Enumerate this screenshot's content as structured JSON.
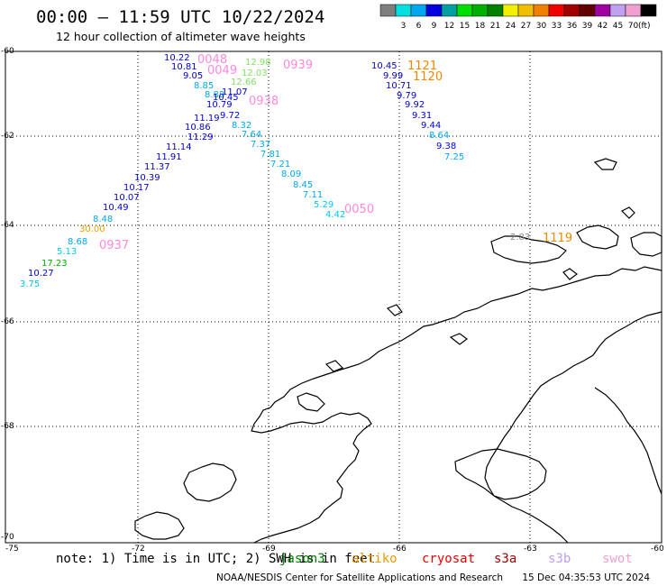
{
  "header": {
    "title": "00:00 – 11:59 UTC 10/22/2024",
    "subtitle": "12 hour collection of altimeter wave heights"
  },
  "legend": {
    "unit": "(ft)",
    "bins": [
      {
        "label": "",
        "color": "#7f7f7f"
      },
      {
        "label": "3",
        "color": "#00e0e0"
      },
      {
        "label": "6",
        "color": "#00a8f0"
      },
      {
        "label": "9",
        "color": "#0000e0"
      },
      {
        "label": "12",
        "color": "#00a0a0"
      },
      {
        "label": "15",
        "color": "#00e000"
      },
      {
        "label": "18",
        "color": "#00b000"
      },
      {
        "label": "21",
        "color": "#008000"
      },
      {
        "label": "24",
        "color": "#f0f000"
      },
      {
        "label": "27",
        "color": "#f0c000"
      },
      {
        "label": "30",
        "color": "#f08000"
      },
      {
        "label": "33",
        "color": "#f00000"
      },
      {
        "label": "36",
        "color": "#a00000"
      },
      {
        "label": "39",
        "color": "#600000"
      },
      {
        "label": "42",
        "color": "#a000a0"
      },
      {
        "label": "45",
        "color": "#c0a0f0"
      },
      {
        "label": "70",
        "color": "#f0a0d0"
      },
      {
        "label": "",
        "color": "#000000"
      }
    ]
  },
  "map": {
    "lat_labels": [
      "-60",
      "-62",
      "-64",
      "-66",
      "-68",
      "-70"
    ],
    "lon_labels": [
      "-75",
      "-72",
      "-69",
      "-66",
      "-63",
      "-60"
    ],
    "track_times": [
      {
        "text": "0048",
        "color": "#ff88dd"
      },
      {
        "text": "0049",
        "color": "#ff88dd"
      },
      {
        "text": "0939",
        "color": "#ff88dd"
      },
      {
        "text": "0938",
        "color": "#ff88dd"
      },
      {
        "text": "0050",
        "color": "#ff88dd"
      },
      {
        "text": "0937",
        "color": "#ff88dd"
      },
      {
        "text": "1121",
        "color": "#ee8800"
      },
      {
        "text": "1120",
        "color": "#ee8800"
      },
      {
        "text": "1119",
        "color": "#ee8800"
      }
    ],
    "wave_heights": [
      {
        "text": "10.22",
        "color": "#0000dd"
      },
      {
        "text": "10.81",
        "color": "#0000dd"
      },
      {
        "text": "9.05",
        "color": "#0000dd"
      },
      {
        "text": "8.85",
        "color": "#00a8f0"
      },
      {
        "text": "8.88",
        "color": "#00a8f0"
      },
      {
        "text": "10.79",
        "color": "#0000dd"
      },
      {
        "text": "11.19",
        "color": "#0000dd"
      },
      {
        "text": "10.86",
        "color": "#0000dd"
      },
      {
        "text": "11.29",
        "color": "#0000dd"
      },
      {
        "text": "11.14",
        "color": "#0000dd"
      },
      {
        "text": "11.91",
        "color": "#0000dd"
      },
      {
        "text": "11.37",
        "color": "#0000dd"
      },
      {
        "text": "10.39",
        "color": "#0000dd"
      },
      {
        "text": "10.17",
        "color": "#0000dd"
      },
      {
        "text": "10.07",
        "color": "#0000dd"
      },
      {
        "text": "10.49",
        "color": "#0000dd"
      },
      {
        "text": "8.48",
        "color": "#00a8f0"
      },
      {
        "text": "30.00",
        "color": "#f0a000"
      },
      {
        "text": "8.68",
        "color": "#00a8f0"
      },
      {
        "text": "5.13",
        "color": "#00c8e8"
      },
      {
        "text": "17.23",
        "color": "#00b000"
      },
      {
        "text": "10.27",
        "color": "#0000dd"
      },
      {
        "text": "3.75",
        "color": "#00c8e8"
      },
      {
        "text": "12.98",
        "color": "#80e060"
      },
      {
        "text": "12.03",
        "color": "#80e060"
      },
      {
        "text": "12.66",
        "color": "#80e060"
      },
      {
        "text": "11.07",
        "color": "#0000dd"
      },
      {
        "text": "10.45",
        "color": "#0000dd"
      },
      {
        "text": "9.72",
        "color": "#0000dd"
      },
      {
        "text": "8.32",
        "color": "#00a8f0"
      },
      {
        "text": "7.64",
        "color": "#00a8f0"
      },
      {
        "text": "7.37",
        "color": "#00a8f0"
      },
      {
        "text": "7.81",
        "color": "#00a8f0"
      },
      {
        "text": "7.21",
        "color": "#00a8f0"
      },
      {
        "text": "8.09",
        "color": "#00a8f0"
      },
      {
        "text": "8.45",
        "color": "#00a8f0"
      },
      {
        "text": "7.11",
        "color": "#00a8f0"
      },
      {
        "text": "5.29",
        "color": "#00c8e8"
      },
      {
        "text": "4.42",
        "color": "#00c8e8"
      },
      {
        "text": "10.45",
        "color": "#0000dd"
      },
      {
        "text": "9.99",
        "color": "#0000dd"
      },
      {
        "text": "10.71",
        "color": "#0000dd"
      },
      {
        "text": "9.79",
        "color": "#0000dd"
      },
      {
        "text": "9.92",
        "color": "#0000dd"
      },
      {
        "text": "9.31",
        "color": "#0000dd"
      },
      {
        "text": "9.44",
        "color": "#0000dd"
      },
      {
        "text": "8.64",
        "color": "#00a8f0"
      },
      {
        "text": "9.38",
        "color": "#0000dd"
      },
      {
        "text": "7.25",
        "color": "#00a8f0"
      },
      {
        "text": "2.83",
        "color": "#888888"
      }
    ]
  },
  "footer": {
    "note": "note:  1) Time is in UTC; 2) SWH is in feet",
    "satellites": [
      {
        "name": "jason3",
        "color": "#008000"
      },
      {
        "name": "altiko",
        "color": "#ee9900"
      },
      {
        "name": "cryosat",
        "color": "#ee0000"
      },
      {
        "name": "s3a",
        "color": "#990000"
      },
      {
        "name": "s3b",
        "color": "#c0a0f0"
      },
      {
        "name": "swot",
        "color": "#f0a0d0"
      }
    ],
    "credit": "NOAA/NESDIS Center for Satellite Applications and Research",
    "timestamp": "15 Dec 04:35:53 UTC 2024"
  }
}
